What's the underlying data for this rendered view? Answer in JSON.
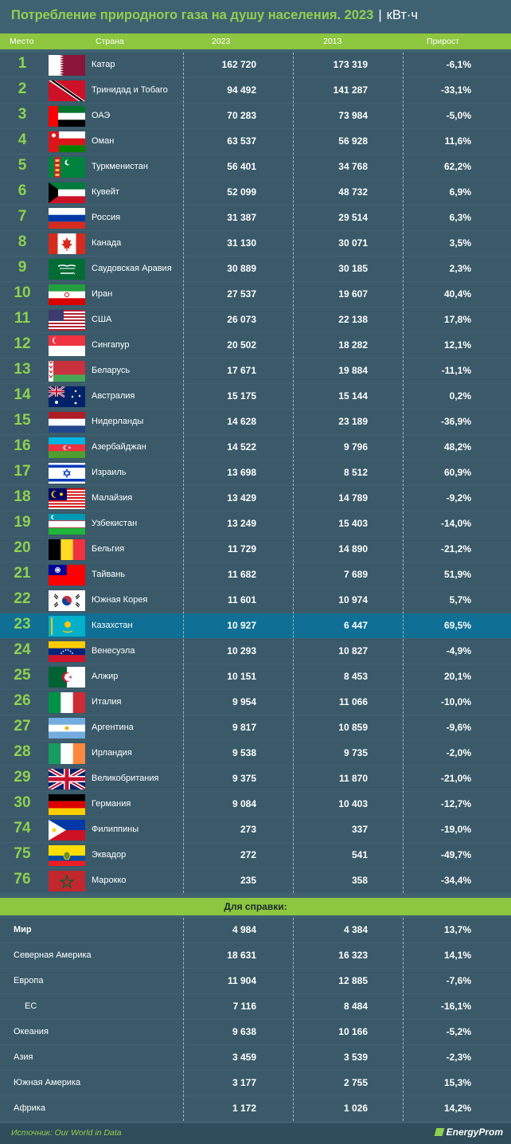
{
  "title": "Потребление природного газа на душу населения. 2023",
  "title_sep": "|",
  "unit": "кВт·ч",
  "headers": {
    "rank": "Место",
    "country": "Страна",
    "y2023": "2023",
    "y2013": "2013",
    "growth": "Прирост"
  },
  "rows": [
    {
      "rank": "1",
      "country": "Катар",
      "flag": "qatar-flag",
      "v2023": "162 720",
      "v2013": "173 319",
      "growth": "-6,1%"
    },
    {
      "rank": "2",
      "country": "Тринидад и Тобаго",
      "flag": "trinidad-flag",
      "v2023": "94 492",
      "v2013": "141 287",
      "growth": "-33,1%"
    },
    {
      "rank": "3",
      "country": "ОАЭ",
      "flag": "uae-flag",
      "v2023": "70 283",
      "v2013": "73 984",
      "growth": "-5,0%"
    },
    {
      "rank": "4",
      "country": "Оман",
      "flag": "oman-flag",
      "v2023": "63 537",
      "v2013": "56 928",
      "growth": "11,6%"
    },
    {
      "rank": "5",
      "country": "Туркменистан",
      "flag": "turkmenistan-flag",
      "v2023": "56 401",
      "v2013": "34 768",
      "growth": "62,2%"
    },
    {
      "rank": "6",
      "country": "Кувейт",
      "flag": "kuwait-flag",
      "v2023": "52 099",
      "v2013": "48 732",
      "growth": "6,9%"
    },
    {
      "rank": "7",
      "country": "Россия",
      "flag": "russia-flag",
      "v2023": "31 387",
      "v2013": "29 514",
      "growth": "6,3%"
    },
    {
      "rank": "8",
      "country": "Канада",
      "flag": "canada-flag",
      "v2023": "31 130",
      "v2013": "30 071",
      "growth": "3,5%"
    },
    {
      "rank": "9",
      "country": "Саудовская Аравия",
      "flag": "saudi-flag",
      "v2023": "30 889",
      "v2013": "30 185",
      "growth": "2,3%"
    },
    {
      "rank": "10",
      "country": "Иран",
      "flag": "iran-flag",
      "v2023": "27 537",
      "v2013": "19 607",
      "growth": "40,4%"
    },
    {
      "rank": "11",
      "country": "США",
      "flag": "usa-flag",
      "v2023": "26 073",
      "v2013": "22 138",
      "growth": "17,8%"
    },
    {
      "rank": "12",
      "country": "Сингапур",
      "flag": "singapore-flag",
      "v2023": "20 502",
      "v2013": "18 282",
      "growth": "12,1%"
    },
    {
      "rank": "13",
      "country": "Беларусь",
      "flag": "belarus-flag",
      "v2023": "17 671",
      "v2013": "19 884",
      "growth": "-11,1%"
    },
    {
      "rank": "14",
      "country": "Австралия",
      "flag": "australia-flag",
      "v2023": "15 175",
      "v2013": "15 144",
      "growth": "0,2%"
    },
    {
      "rank": "15",
      "country": "Нидерланды",
      "flag": "netherlands-flag",
      "v2023": "14 628",
      "v2013": "23 189",
      "growth": "-36,9%"
    },
    {
      "rank": "16",
      "country": "Азербайджан",
      "flag": "azerbaijan-flag",
      "v2023": "14 522",
      "v2013": "9 796",
      "growth": "48,2%"
    },
    {
      "rank": "17",
      "country": "Израиль",
      "flag": "israel-flag",
      "v2023": "13 698",
      "v2013": "8 512",
      "growth": "60,9%"
    },
    {
      "rank": "18",
      "country": "Малайзия",
      "flag": "malaysia-flag",
      "v2023": "13 429",
      "v2013": "14 789",
      "growth": "-9,2%"
    },
    {
      "rank": "19",
      "country": "Узбекистан",
      "flag": "uzbekistan-flag",
      "v2023": "13 249",
      "v2013": "15 403",
      "growth": "-14,0%"
    },
    {
      "rank": "20",
      "country": "Бельгия",
      "flag": "belgium-flag",
      "v2023": "11 729",
      "v2013": "14 890",
      "growth": "-21,2%"
    },
    {
      "rank": "21",
      "country": "Тайвань",
      "flag": "taiwan-flag",
      "v2023": "11 682",
      "v2013": "7 689",
      "growth": "51,9%"
    },
    {
      "rank": "22",
      "country": "Южная Корея",
      "flag": "south-korea-flag",
      "v2023": "11 601",
      "v2013": "10 974",
      "growth": "5,7%"
    },
    {
      "rank": "23",
      "country": "Казахстан",
      "flag": "kazakhstan-flag",
      "v2023": "10 927",
      "v2013": "6 447",
      "growth": "69,5%",
      "highlight": true
    },
    {
      "rank": "24",
      "country": "Венесуэла",
      "flag": "venezuela-flag",
      "v2023": "10 293",
      "v2013": "10 827",
      "growth": "-4,9%"
    },
    {
      "rank": "25",
      "country": "Алжир",
      "flag": "algeria-flag",
      "v2023": "10 151",
      "v2013": "8 453",
      "growth": "20,1%"
    },
    {
      "rank": "26",
      "country": "Италия",
      "flag": "italy-flag",
      "v2023": "9 954",
      "v2013": "11 066",
      "growth": "-10,0%"
    },
    {
      "rank": "27",
      "country": "Аргентина",
      "flag": "argentina-flag",
      "v2023": "9 817",
      "v2013": "10 859",
      "growth": "-9,6%"
    },
    {
      "rank": "28",
      "country": "Ирландия",
      "flag": "ireland-flag",
      "v2023": "9 538",
      "v2013": "9 735",
      "growth": "-2,0%"
    },
    {
      "rank": "29",
      "country": "Великобритания",
      "flag": "uk-flag",
      "v2023": "9 375",
      "v2013": "11 870",
      "growth": "-21,0%"
    },
    {
      "rank": "30",
      "country": "Германия",
      "flag": "germany-flag",
      "v2023": "9 084",
      "v2013": "10 403",
      "growth": "-12,7%"
    },
    {
      "rank": "74",
      "country": "Филиппины",
      "flag": "philippines-flag",
      "v2023": "273",
      "v2013": "337",
      "growth": "-19,0%"
    },
    {
      "rank": "75",
      "country": "Эквадор",
      "flag": "ecuador-flag",
      "v2023": "272",
      "v2013": "541",
      "growth": "-49,7%"
    },
    {
      "rank": "76",
      "country": "Марокко",
      "flag": "morocco-flag",
      "v2023": "235",
      "v2013": "358",
      "growth": "-34,4%"
    }
  ],
  "reference_title": "Для справки:",
  "reference": [
    {
      "name": "Мир",
      "v2023": "4 984",
      "v2013": "4 384",
      "growth": "13,7%",
      "bold": true
    },
    {
      "name": "Северная Америка",
      "v2023": "18 631",
      "v2013": "16 323",
      "growth": "14,1%"
    },
    {
      "name": "Европа",
      "v2023": "11 904",
      "v2013": "12 885",
      "growth": "-7,6%"
    },
    {
      "name": "ЕС",
      "v2023": "7 116",
      "v2013": "8 484",
      "growth": "-16,1%",
      "indent": true
    },
    {
      "name": "Океания",
      "v2023": "9 638",
      "v2013": "10 166",
      "growth": "-5,2%"
    },
    {
      "name": "Азия",
      "v2023": "3 459",
      "v2013": "3 539",
      "growth": "-2,3%"
    },
    {
      "name": "Южная Америка",
      "v2023": "3 177",
      "v2013": "2 755",
      "growth": "15,3%"
    },
    {
      "name": "Африка",
      "v2023": "1 172",
      "v2013": "1 026",
      "growth": "14,2%"
    }
  ],
  "source": "Источник: Our World in Data",
  "logo": "EnergyProm",
  "colors": {
    "accent": "#8dc63f",
    "background": "#3f6272",
    "row": "#3a5a69",
    "highlight": "#0f6f94"
  }
}
